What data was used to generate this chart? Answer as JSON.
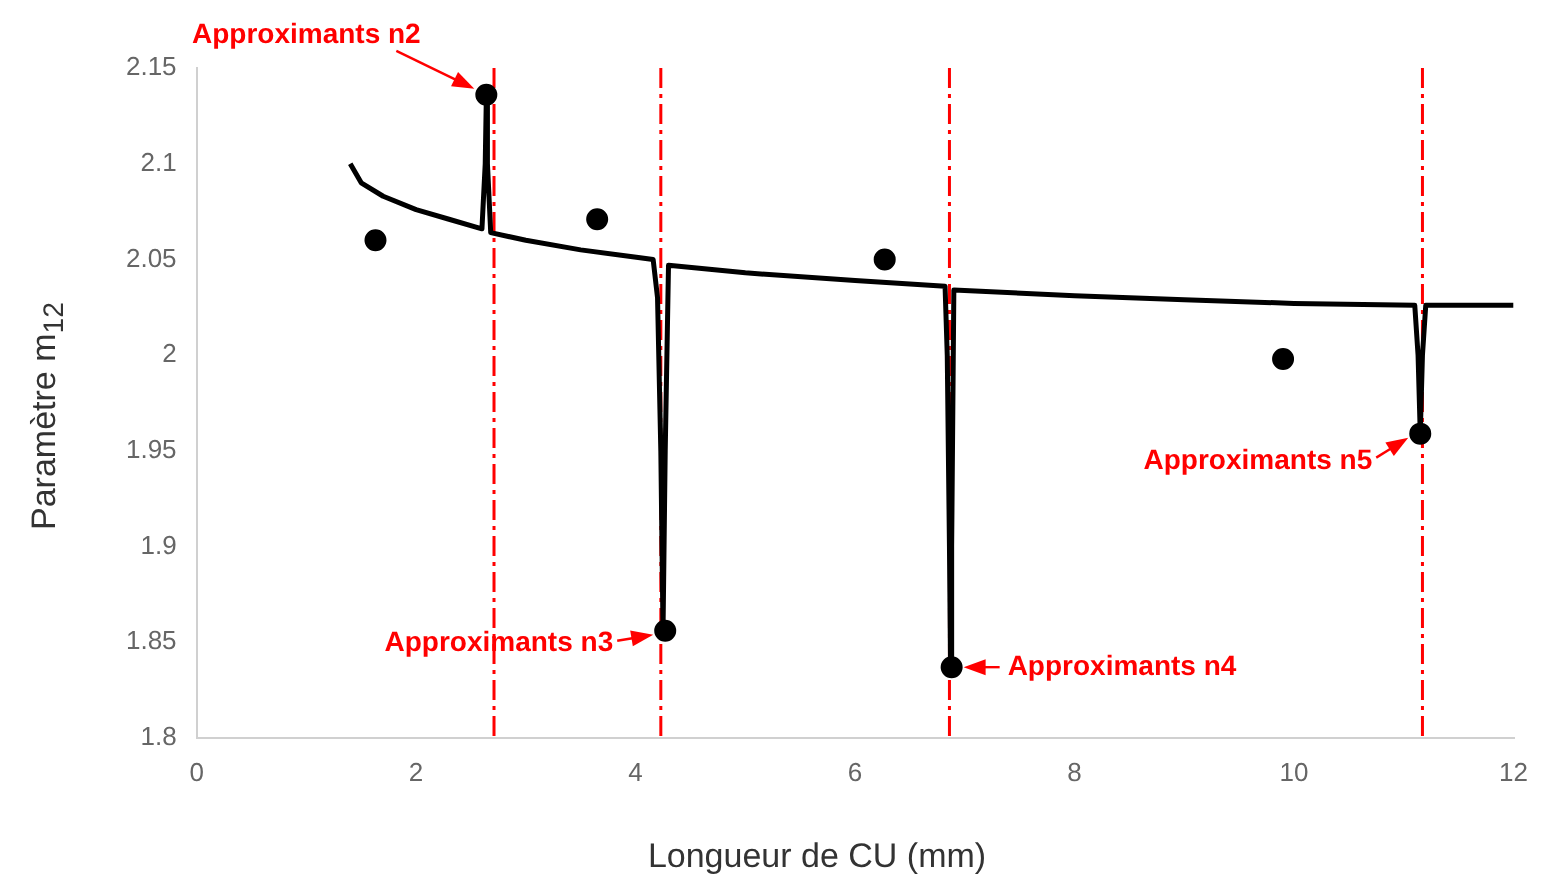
{
  "chart_data": {
    "type": "line",
    "xlabel": "Longueur de CU (mm)",
    "ylabel": "Paramètre m$_{12}$",
    "xlim": [
      0,
      12
    ],
    "xticks": [
      0,
      2,
      4,
      6,
      8,
      10,
      12
    ],
    "ylim": [
      1.8,
      2.15
    ],
    "yticks": [
      1.8,
      1.85,
      1.9,
      1.95,
      2,
      2.05,
      2.1,
      2.15
    ],
    "grid": false,
    "legend": false,
    "series": [
      {
        "color": "#000000",
        "marker": "none",
        "line_style": "solid",
        "x": [
          1.4,
          1.5,
          1.7,
          2.0,
          2.3,
          2.6,
          2.63,
          2.64,
          2.65,
          2.68,
          3.0,
          3.5,
          4.16,
          4.2,
          4.23,
          4.25,
          4.27,
          4.3,
          5.0,
          6.0,
          6.82,
          6.84,
          6.86,
          6.87,
          6.88,
          6.9,
          8.0,
          9.0,
          10.0,
          11.1,
          11.13,
          11.15,
          11.17,
          11.2,
          12.0
        ],
        "values": [
          2.1,
          2.09,
          2.083,
          2.076,
          2.071,
          2.066,
          2.1,
          2.135,
          2.1,
          2.064,
          2.06,
          2.055,
          2.05,
          2.03,
          1.95,
          1.856,
          1.95,
          2.047,
          2.043,
          2.039,
          2.036,
          2.0,
          1.9,
          1.837,
          1.9,
          2.034,
          2.031,
          2.029,
          2.027,
          2.026,
          2.0,
          1.959,
          2.0,
          2.026,
          2.026
        ]
      },
      {
        "type": "scatter",
        "color": "#000000",
        "marker": "circle",
        "x": [
          1.63,
          2.64,
          3.65,
          4.27,
          6.27,
          6.88,
          9.9,
          11.15
        ],
        "values": [
          2.06,
          2.136,
          2.071,
          1.856,
          2.05,
          1.837,
          1.998,
          1.959
        ]
      }
    ],
    "ref_lines": [
      {
        "axis": "x",
        "value": 2.71,
        "color": "#ff0000",
        "line_style": "dashed"
      },
      {
        "axis": "x",
        "value": 4.23,
        "color": "#ff0000",
        "line_style": "dashed"
      },
      {
        "axis": "x",
        "value": 6.86,
        "color": "#ff0000",
        "line_style": "dashed"
      },
      {
        "axis": "x",
        "value": 11.17,
        "color": "#ff0000",
        "line_style": "dashed"
      }
    ],
    "annotations": [
      {
        "text": "Approximants n2",
        "x": 2.64,
        "y": 2.136
      },
      {
        "text": "Approximants n3",
        "x": 4.27,
        "y": 1.856
      },
      {
        "text": "Approximants n4",
        "x": 6.88,
        "y": 1.837
      },
      {
        "text": "Approximants n5",
        "x": 11.15,
        "y": 1.959
      }
    ]
  }
}
